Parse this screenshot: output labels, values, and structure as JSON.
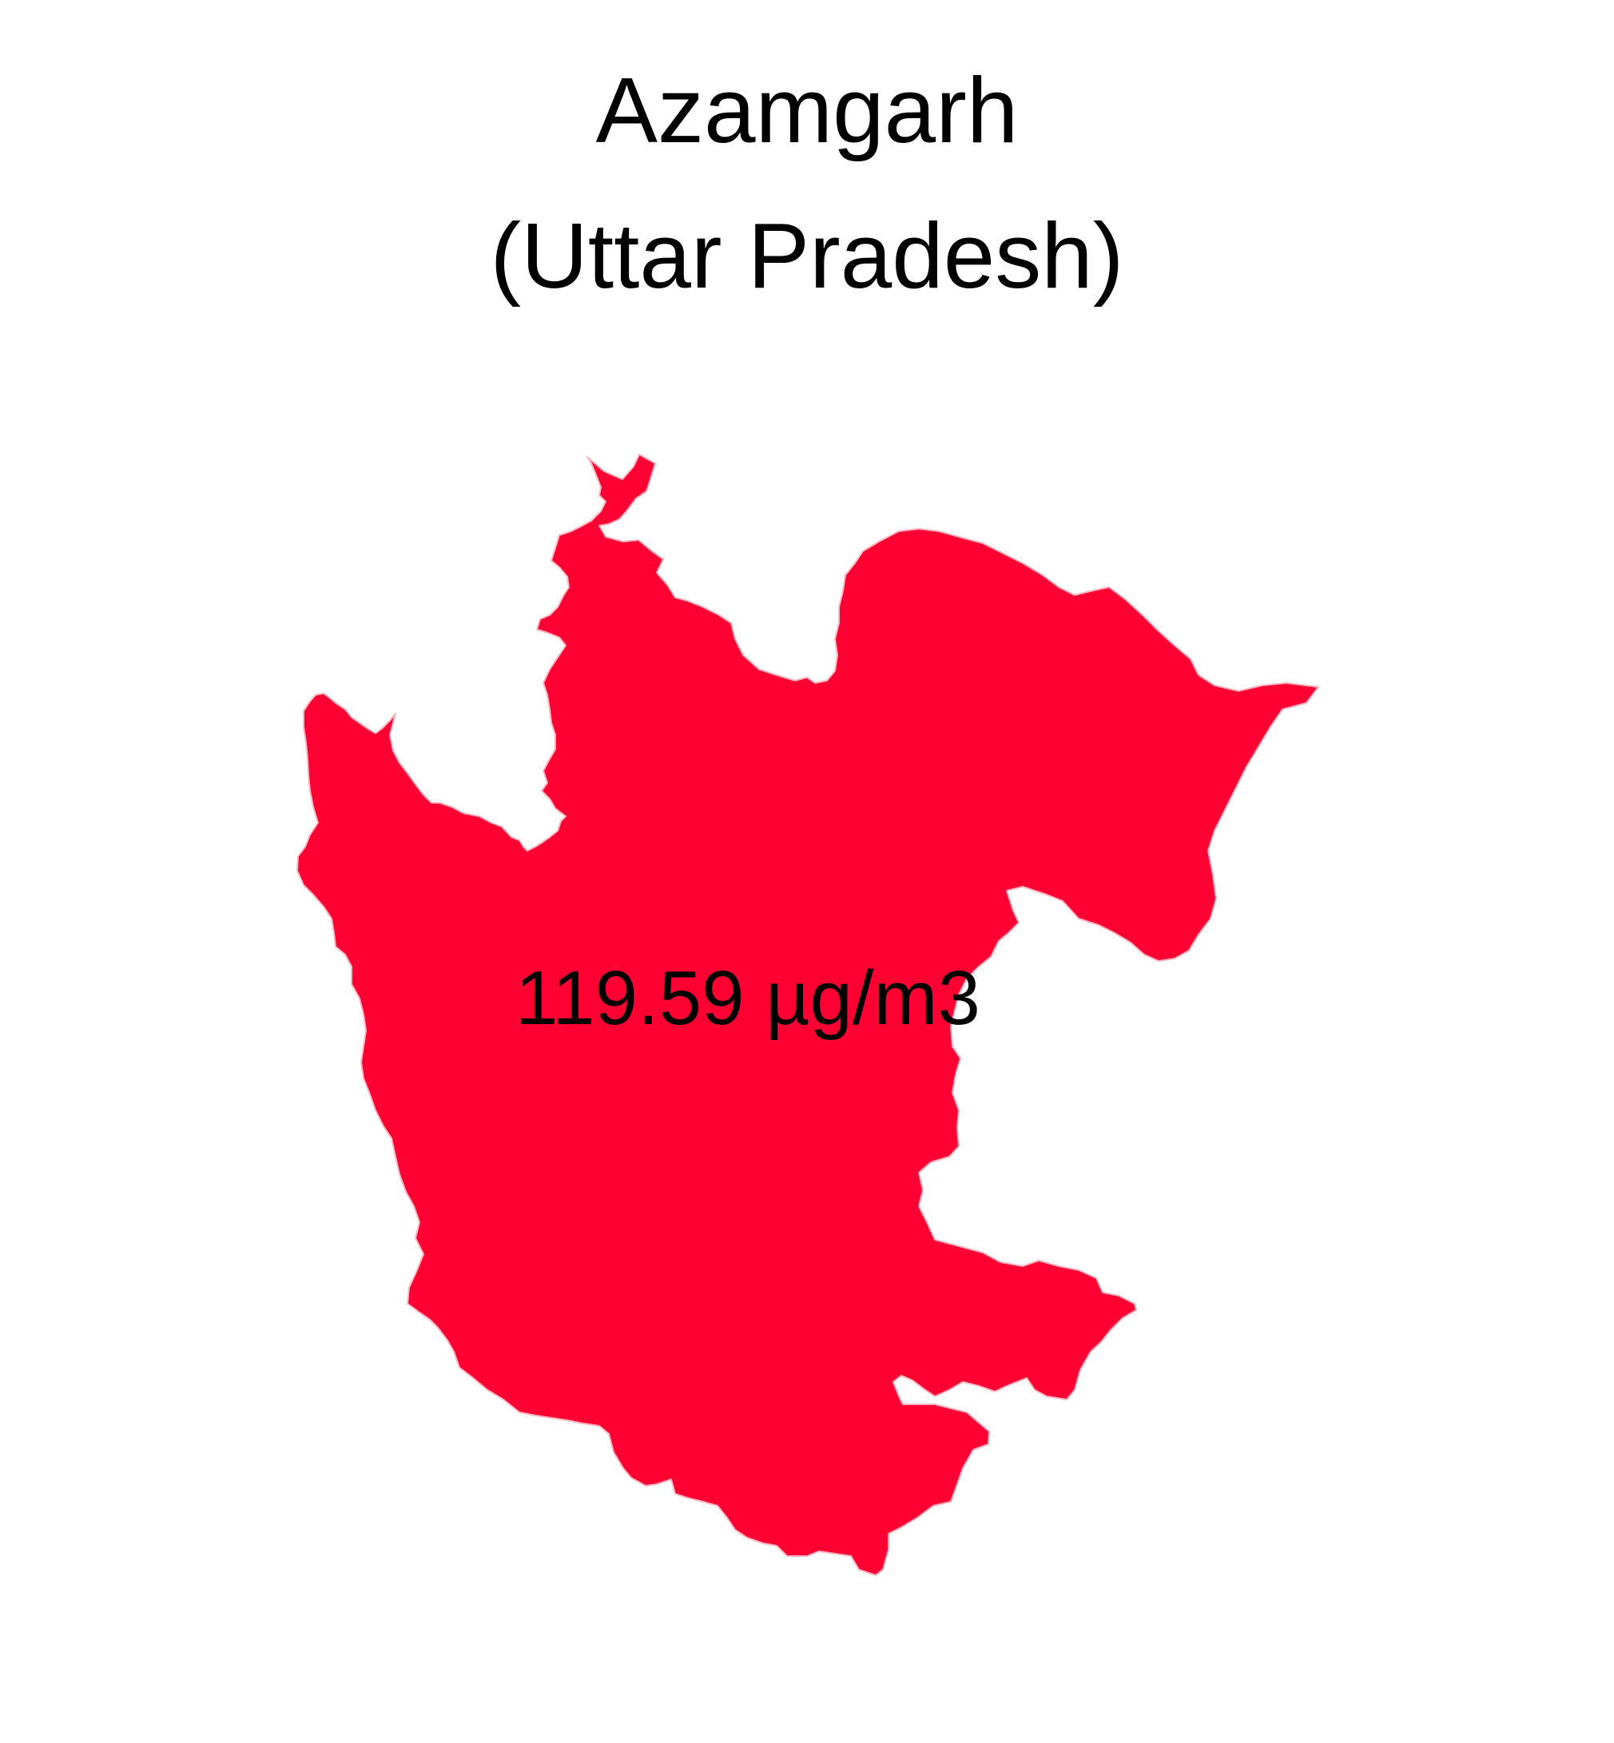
{
  "title": {
    "district": "Azamgarh",
    "state": "(Uttar Pradesh)"
  },
  "map": {
    "region_label": "119.59 µg/m3",
    "fill_color": "#FF0033",
    "border_color": "#FFB3C0",
    "background_color": "#FFFFFF"
  }
}
